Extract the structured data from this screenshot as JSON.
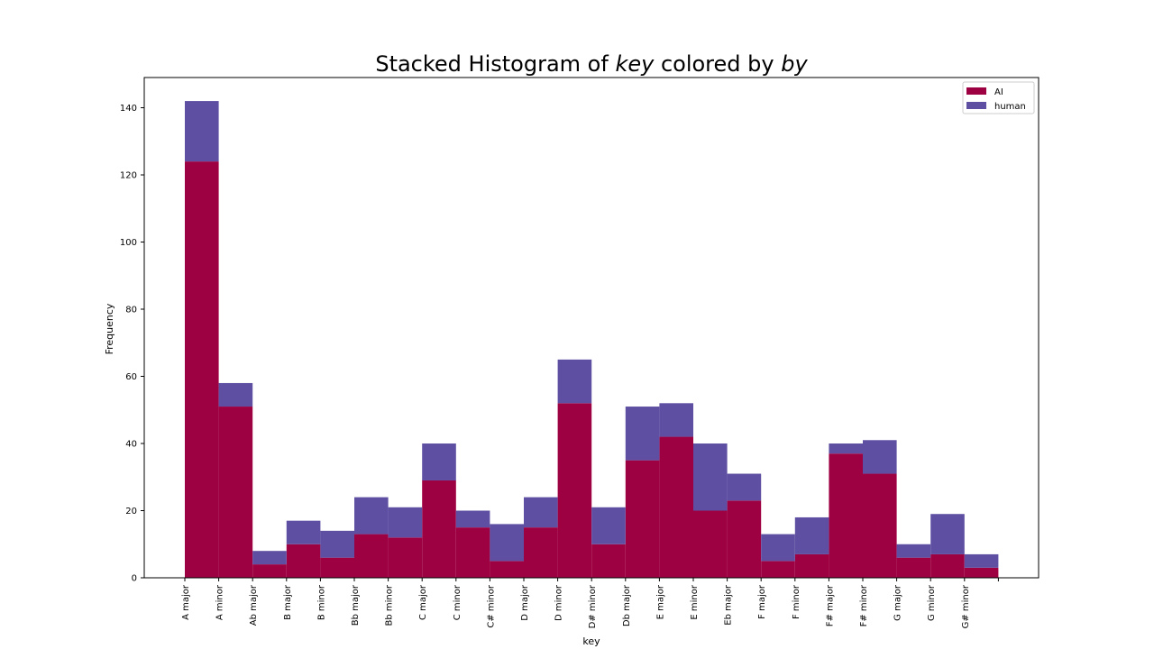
{
  "chart_data": {
    "type": "bar",
    "stacked": true,
    "title_prefix": "Stacked Histogram of ",
    "title_var1": "key",
    "title_middle": " colored by ",
    "title_var2": "by",
    "xlabel": "key",
    "ylabel": "Frequency",
    "ylim": [
      0,
      149
    ],
    "yticks": [
      0,
      20,
      40,
      60,
      80,
      100,
      120,
      140
    ],
    "legend_position": "top-right",
    "categories": [
      "A major",
      "A minor",
      "Ab major",
      "B major",
      "B minor",
      "Bb major",
      "Bb minor",
      "C major",
      "C minor",
      "C# minor",
      "D major",
      "D minor",
      "D# minor",
      "Db major",
      "E major",
      "E minor",
      "Eb major",
      "F major",
      "F minor",
      "F# major",
      "F# minor",
      "G major",
      "G minor",
      "G# minor"
    ],
    "series": [
      {
        "name": "AI",
        "color": "#9e0142",
        "values": [
          124,
          51,
          4,
          10,
          6,
          13,
          12,
          29,
          15,
          5,
          15,
          52,
          10,
          35,
          42,
          20,
          23,
          5,
          7,
          37,
          31,
          6,
          7,
          3
        ]
      },
      {
        "name": "human",
        "color": "#5e4fa2",
        "values": [
          18,
          7,
          4,
          7,
          8,
          11,
          9,
          11,
          5,
          11,
          9,
          13,
          11,
          16,
          10,
          20,
          8,
          8,
          11,
          3,
          10,
          4,
          12,
          4
        ]
      }
    ]
  }
}
